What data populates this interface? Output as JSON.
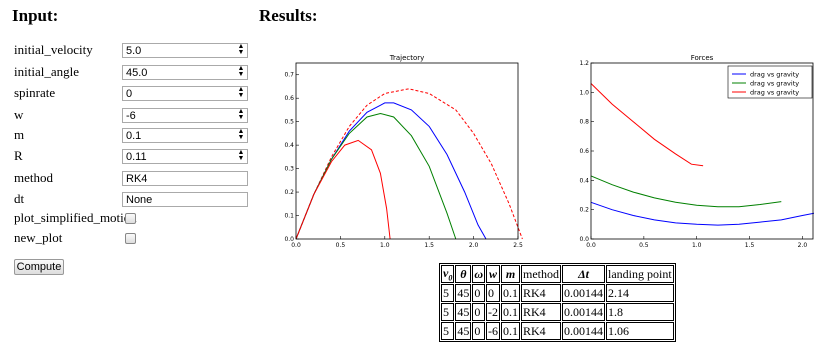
{
  "headings": {
    "input": "Input:",
    "results": "Results:"
  },
  "fields": [
    {
      "label": "initial_velocity",
      "value": "5.0",
      "kind": "spin"
    },
    {
      "label": "initial_angle",
      "value": "45.0",
      "kind": "spin"
    },
    {
      "label": "spinrate",
      "value": "0",
      "kind": "spin"
    },
    {
      "label": "w",
      "value": "-6",
      "kind": "spin"
    },
    {
      "label": "m",
      "value": "0.1",
      "kind": "spin"
    },
    {
      "label": "R",
      "value": "0.11",
      "kind": "spin"
    },
    {
      "label": "method",
      "value": "RK4",
      "kind": "text"
    },
    {
      "label": "dt",
      "value": "None",
      "kind": "text"
    },
    {
      "label": "plot_simplified_motion",
      "checked": false,
      "kind": "check"
    },
    {
      "label": "new_plot",
      "checked": false,
      "kind": "check"
    }
  ],
  "compute_label": "Compute",
  "chart_data": [
    {
      "type": "line",
      "title": "Trajectory",
      "xlim": [
        0,
        2.5
      ],
      "ylim": [
        0,
        0.75
      ],
      "xticks": [
        "0.0",
        "0.5",
        "1.0",
        "1.5",
        "2.0",
        "2.5"
      ],
      "yticks": [
        "0.0",
        "0.1",
        "0.2",
        "0.3",
        "0.4",
        "0.5",
        "0.6",
        "0.7"
      ],
      "series": [
        {
          "color": "#ff0000",
          "dashed": true,
          "x": [
            0,
            0.2,
            0.4,
            0.6,
            0.8,
            1.0,
            1.27,
            1.5,
            1.8,
            2.0,
            2.2,
            2.4,
            2.55
          ],
          "y": [
            0,
            0.19,
            0.35,
            0.48,
            0.57,
            0.62,
            0.64,
            0.62,
            0.55,
            0.45,
            0.32,
            0.15,
            0.0
          ]
        },
        {
          "color": "#0000ff",
          "dashed": false,
          "x": [
            0,
            0.2,
            0.4,
            0.6,
            0.8,
            1.0,
            1.1,
            1.3,
            1.5,
            1.7,
            1.9,
            2.05,
            2.14
          ],
          "y": [
            0,
            0.19,
            0.34,
            0.46,
            0.54,
            0.58,
            0.58,
            0.55,
            0.48,
            0.36,
            0.2,
            0.06,
            0.0
          ]
        },
        {
          "color": "#008000",
          "dashed": false,
          "x": [
            0,
            0.2,
            0.4,
            0.6,
            0.8,
            0.95,
            1.1,
            1.3,
            1.5,
            1.7,
            1.8
          ],
          "y": [
            0,
            0.19,
            0.34,
            0.45,
            0.52,
            0.535,
            0.52,
            0.44,
            0.31,
            0.11,
            0.0
          ]
        },
        {
          "color": "#ff0000",
          "dashed": false,
          "x": [
            0,
            0.2,
            0.4,
            0.55,
            0.7,
            0.85,
            0.95,
            1.02,
            1.06
          ],
          "y": [
            0,
            0.19,
            0.33,
            0.4,
            0.42,
            0.38,
            0.28,
            0.13,
            0.0
          ]
        }
      ]
    },
    {
      "type": "line",
      "title": "Forces",
      "xlim": [
        0,
        2.1
      ],
      "ylim": [
        0,
        1.2
      ],
      "xticks": [
        "0.0",
        "0.5",
        "1.0",
        "1.5",
        "2.0",
        "2"
      ],
      "yticks": [
        "0.0",
        "0.2",
        "0.4",
        "0.6",
        "0.8",
        "1.0",
        "1.2"
      ],
      "legend_position": "top-right",
      "series": [
        {
          "name": "drag vs gravity",
          "color": "#0000ff",
          "x": [
            0,
            0.2,
            0.4,
            0.6,
            0.8,
            1.0,
            1.2,
            1.4,
            1.6,
            1.8,
            2.0,
            2.14
          ],
          "y": [
            0.25,
            0.2,
            0.16,
            0.13,
            0.11,
            0.1,
            0.095,
            0.1,
            0.115,
            0.13,
            0.16,
            0.18
          ]
        },
        {
          "name": "drag vs gravity",
          "color": "#008000",
          "x": [
            0,
            0.2,
            0.4,
            0.6,
            0.8,
            1.0,
            1.2,
            1.4,
            1.6,
            1.8
          ],
          "y": [
            0.43,
            0.37,
            0.32,
            0.28,
            0.25,
            0.23,
            0.22,
            0.22,
            0.235,
            0.255
          ]
        },
        {
          "name": "drag vs gravity",
          "color": "#ff0000",
          "x": [
            0,
            0.2,
            0.4,
            0.6,
            0.8,
            0.95,
            1.06
          ],
          "y": [
            1.06,
            0.92,
            0.8,
            0.68,
            0.58,
            0.51,
            0.5
          ]
        }
      ]
    }
  ],
  "table": {
    "headers": [
      "v0",
      "θ",
      "ω",
      "w",
      "m",
      "method",
      "Δt",
      "landing point"
    ],
    "rows": [
      [
        "5",
        "45",
        "0",
        "0",
        "0.1",
        "RK4",
        "0.00144",
        "2.14"
      ],
      [
        "5",
        "45",
        "0",
        "-2",
        "0.1",
        "RK4",
        "0.00144",
        "1.8"
      ],
      [
        "5",
        "45",
        "0",
        "-6",
        "0.1",
        "RK4",
        "0.00144",
        "1.06"
      ]
    ]
  }
}
